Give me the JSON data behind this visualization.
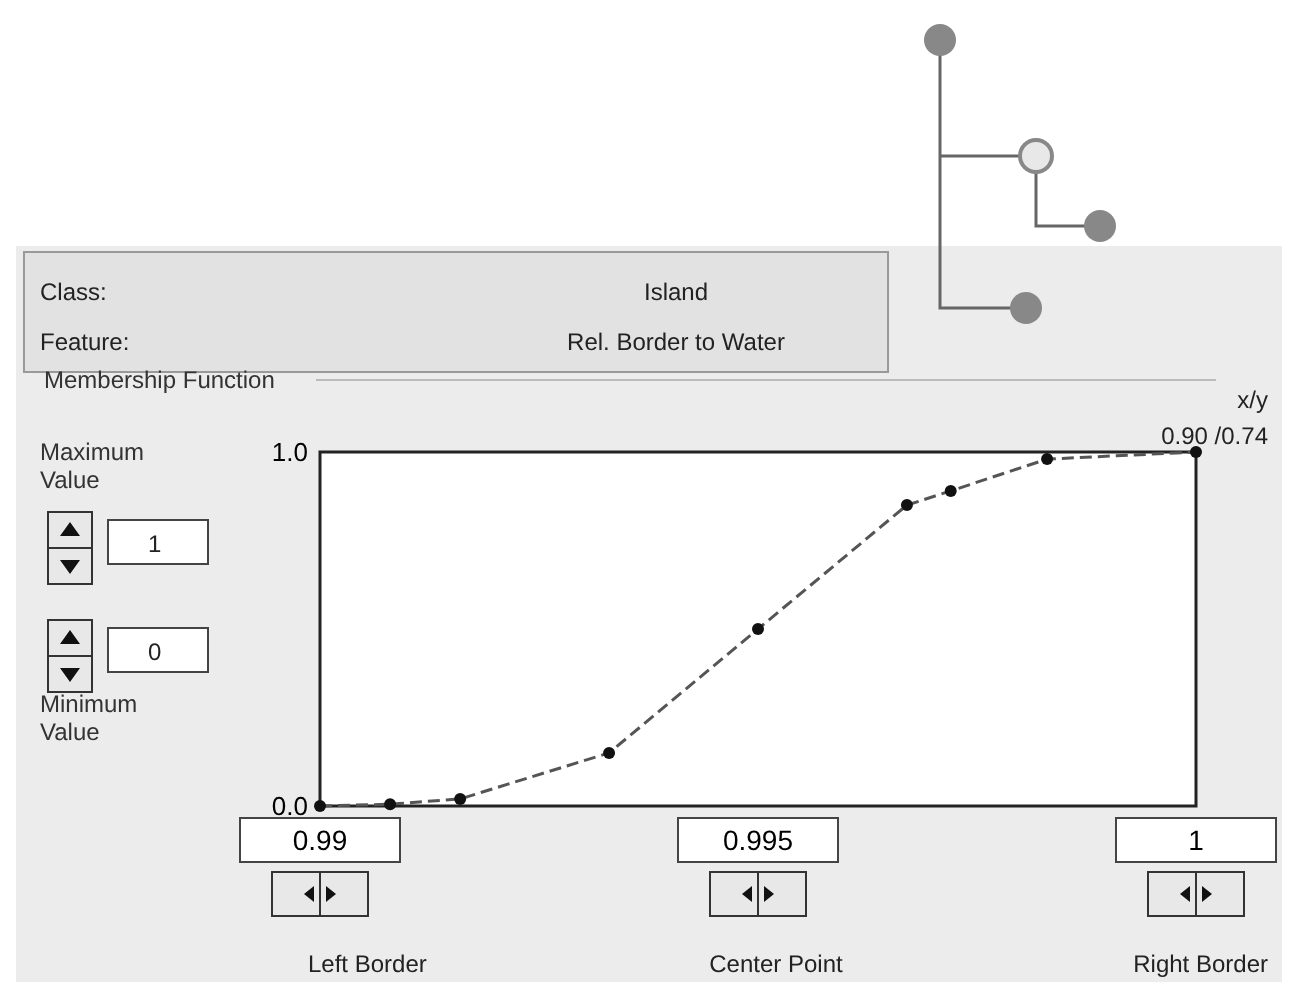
{
  "chart_data": {
    "type": "line",
    "title": "Membership Function",
    "x": [
      0.99,
      0.9908,
      0.9916,
      0.9933,
      0.995,
      0.9967,
      0.9972,
      0.9983,
      1
    ],
    "series": [
      {
        "color": "#555555",
        "values": [
          0,
          0.005,
          0.02,
          0.15,
          0.5,
          0.85,
          0.89,
          0.98,
          1
        ]
      }
    ],
    "xlim": [
      0.99,
      1
    ],
    "xticks": [
      0.99,
      0.995,
      1
    ],
    "ylim": [
      0,
      1
    ],
    "yticks": [
      {
        "value": 0,
        "label": "0.0"
      },
      {
        "value": 1,
        "label": "1.0"
      }
    ],
    "marker": "circle",
    "line_style": "dashed",
    "grid": false,
    "annotations": [
      "Class:",
      "Island",
      "Feature:",
      "Rel. Border to Water",
      "Maximum Value",
      "1",
      "0",
      "Minimum Value",
      "x/y",
      "0.90 /0.74",
      "Left Border",
      "Center Point",
      "Right Border"
    ]
  }
}
